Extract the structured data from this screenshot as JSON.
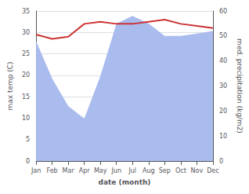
{
  "chart_data": {
    "type": "line",
    "categories": [
      "Jan",
      "Feb",
      "Mar",
      "Apr",
      "May",
      "Jun",
      "Jul",
      "Aug",
      "Sep",
      "Oct",
      "Nov",
      "Dec"
    ],
    "xlabel": "date (month)",
    "ylabel": "max temp (C)",
    "y2label": "med. precipitation (kg/m2)",
    "series": [
      {
        "type": "area",
        "color": "#aabbee",
        "axis": "y2",
        "values": [
          48,
          33,
          22,
          17,
          34,
          55,
          58,
          55,
          50,
          50,
          51,
          52
        ]
      },
      {
        "type": "line",
        "color": "#cc3333",
        "values": [
          29.5,
          28.5,
          29.0,
          32.0,
          32.5,
          32.0,
          32.0,
          32.5,
          33.0,
          32.0,
          31.5,
          31.0
        ]
      }
    ],
    "ylim": [
      0,
      35
    ],
    "yticks": [
      0,
      5,
      10,
      15,
      20,
      25,
      30,
      35
    ],
    "y2lim": [
      0,
      60
    ],
    "y2ticks": [
      0,
      10,
      20,
      30,
      40,
      50,
      60
    ],
    "grid": true
  }
}
